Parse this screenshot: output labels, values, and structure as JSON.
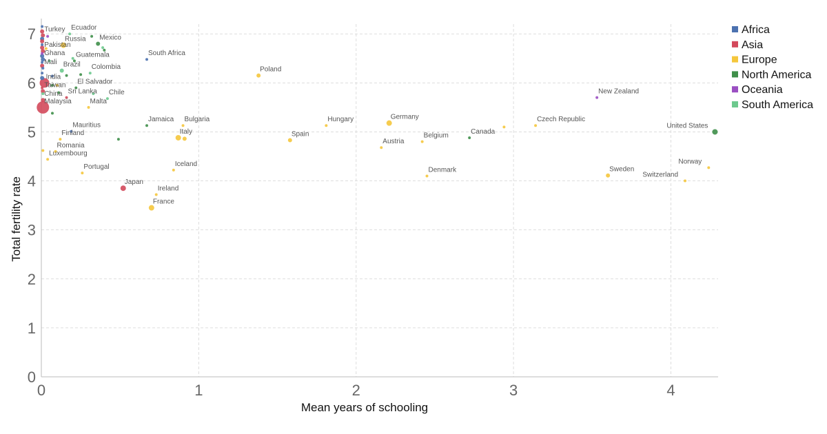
{
  "chart_data": {
    "type": "scatter",
    "xlabel": "Mean years of schooling",
    "ylabel": "Total fertility rate",
    "xlim": [
      0,
      4.3
    ],
    "ylim": [
      0,
      7.2
    ],
    "x_ticks": [
      "0",
      "1",
      "2",
      "3",
      "4"
    ],
    "y_ticks": [
      "0",
      "1",
      "2",
      "3",
      "4",
      "5",
      "6",
      "7"
    ],
    "grid": true,
    "legend_position": "top-right",
    "series": [
      {
        "name": "Africa",
        "color": "#4c72b0"
      },
      {
        "name": "Asia",
        "color": "#d3495b"
      },
      {
        "name": "Europe",
        "color": "#f5c73c"
      },
      {
        "name": "North America",
        "color": "#3f8f4a"
      },
      {
        "name": "Oceania",
        "color": "#9b4fc2"
      },
      {
        "name": "South America",
        "color": "#6dc98e"
      }
    ],
    "points": [
      {
        "label": "Turkey",
        "x": 0.01,
        "y": 6.97,
        "r": 3,
        "group": "Asia"
      },
      {
        "label": "Ecuador",
        "x": 0.18,
        "y": 7.0,
        "r": 2,
        "group": "South America"
      },
      {
        "label": "Mexico",
        "x": 0.36,
        "y": 6.8,
        "r": 3,
        "group": "North America"
      },
      {
        "label": "Russia",
        "x": 0.14,
        "y": 6.77,
        "r": 4,
        "group": "Europe"
      },
      {
        "label": "Pakistan",
        "x": 0.01,
        "y": 6.65,
        "r": 3,
        "group": "Asia"
      },
      {
        "label": "Guatemala",
        "x": 0.21,
        "y": 6.45,
        "r": 2,
        "group": "North America"
      },
      {
        "label": "Ghana",
        "x": 0.01,
        "y": 6.48,
        "r": 3,
        "group": "Africa"
      },
      {
        "label": "South Africa",
        "x": 0.67,
        "y": 6.48,
        "r": 2,
        "group": "Africa"
      },
      {
        "label": "Brazil",
        "x": 0.13,
        "y": 6.25,
        "r": 3,
        "group": "South America"
      },
      {
        "label": "Mali",
        "x": 0.01,
        "y": 6.3,
        "r": 2,
        "group": "Africa"
      },
      {
        "label": "Colombia",
        "x": 0.31,
        "y": 6.2,
        "r": 2,
        "group": "South America"
      },
      {
        "label": "Poland",
        "x": 1.38,
        "y": 6.15,
        "r": 3,
        "group": "Europe"
      },
      {
        "label": "India",
        "x": 0.02,
        "y": 6.0,
        "r": 7,
        "group": "Asia"
      },
      {
        "label": "El Salvador",
        "x": 0.22,
        "y": 5.9,
        "r": 2,
        "group": "North America"
      },
      {
        "label": "Taiwan",
        "x": 0.01,
        "y": 5.83,
        "r": 3,
        "group": "Asia"
      },
      {
        "label": "Sri Lanka",
        "x": 0.16,
        "y": 5.7,
        "r": 2,
        "group": "Asia"
      },
      {
        "label": "Chile",
        "x": 0.42,
        "y": 5.68,
        "r": 2,
        "group": "South America"
      },
      {
        "label": "China",
        "x": 0.01,
        "y": 5.65,
        "r": 3,
        "group": "Asia"
      },
      {
        "label": "Malta",
        "x": 0.3,
        "y": 5.5,
        "r": 2,
        "group": "Europe"
      },
      {
        "label": "Malaysia",
        "x": 0.01,
        "y": 5.5,
        "r": 9,
        "group": "Asia"
      },
      {
        "label": "New Zealand",
        "x": 3.53,
        "y": 5.7,
        "r": 2,
        "group": "Oceania"
      },
      {
        "label": "Germany",
        "x": 2.21,
        "y": 5.18,
        "r": 4,
        "group": "Europe"
      },
      {
        "label": "Hungary",
        "x": 1.81,
        "y": 5.13,
        "r": 2,
        "group": "Europe"
      },
      {
        "label": "Jamaica",
        "x": 0.67,
        "y": 5.13,
        "r": 2,
        "group": "North America"
      },
      {
        "label": "Bulgaria",
        "x": 0.9,
        "y": 5.13,
        "r": 2,
        "group": "Europe"
      },
      {
        "label": "Czech Republic",
        "x": 3.14,
        "y": 5.13,
        "r": 2,
        "group": "Europe"
      },
      {
        "label": "United States",
        "x": 4.28,
        "y": 5.0,
        "r": 4,
        "group": "North America"
      },
      {
        "label": "Mauritius",
        "x": 0.19,
        "y": 5.01,
        "r": 2,
        "group": "Africa"
      },
      {
        "label": "Canada",
        "x": 2.72,
        "y": 4.88,
        "r": 2,
        "group": "North America"
      },
      {
        "label": "Italy",
        "x": 0.87,
        "y": 4.88,
        "r": 4,
        "group": "Europe"
      },
      {
        "label": "Spain",
        "x": 1.58,
        "y": 4.83,
        "r": 3,
        "group": "Europe"
      },
      {
        "label": "Finland",
        "x": 0.12,
        "y": 4.85,
        "r": 2,
        "group": "Europe"
      },
      {
        "label": "Belgium",
        "x": 2.42,
        "y": 4.8,
        "r": 2,
        "group": "Europe"
      },
      {
        "label": "Austria",
        "x": 2.16,
        "y": 4.68,
        "r": 2,
        "group": "Europe"
      },
      {
        "label": "Romania",
        "x": 0.09,
        "y": 4.6,
        "r": 2,
        "group": "Europe"
      },
      {
        "label": "Luxembourg",
        "x": 0.04,
        "y": 4.44,
        "r": 2,
        "group": "Europe"
      },
      {
        "label": "Norway",
        "x": 4.24,
        "y": 4.27,
        "r": 2,
        "group": "Europe"
      },
      {
        "label": "Iceland",
        "x": 0.84,
        "y": 4.22,
        "r": 2,
        "group": "Europe"
      },
      {
        "label": "Portugal",
        "x": 0.26,
        "y": 4.16,
        "r": 2,
        "group": "Europe"
      },
      {
        "label": "Sweden",
        "x": 3.6,
        "y": 4.11,
        "r": 3,
        "group": "Europe"
      },
      {
        "label": "Denmark",
        "x": 2.45,
        "y": 4.1,
        "r": 2,
        "group": "Europe"
      },
      {
        "label": "Switzerland",
        "x": 4.09,
        "y": 4.0,
        "r": 2,
        "group": "Europe"
      },
      {
        "label": "Japan",
        "x": 0.52,
        "y": 3.85,
        "r": 4,
        "group": "Asia"
      },
      {
        "label": "Ireland",
        "x": 0.73,
        "y": 3.72,
        "r": 2,
        "group": "Europe"
      },
      {
        "label": "France",
        "x": 0.7,
        "y": 3.45,
        "r": 4,
        "group": "Europe"
      },
      {
        "label": "",
        "x": 0.005,
        "y": 7.15,
        "r": 2,
        "group": "Africa"
      },
      {
        "label": "",
        "x": 0.005,
        "y": 7.05,
        "r": 3,
        "group": "Asia"
      },
      {
        "label": "",
        "x": 0.005,
        "y": 6.9,
        "r": 3,
        "group": "Africa"
      },
      {
        "label": "",
        "x": 0.005,
        "y": 6.85,
        "r": 3,
        "group": "Asia"
      },
      {
        "label": "",
        "x": 0.005,
        "y": 6.78,
        "r": 2,
        "group": "Africa"
      },
      {
        "label": "",
        "x": 0.005,
        "y": 6.72,
        "r": 3,
        "group": "Asia"
      },
      {
        "label": "",
        "x": 0.005,
        "y": 6.6,
        "r": 2,
        "group": "Oceania"
      },
      {
        "label": "",
        "x": 0.005,
        "y": 6.55,
        "r": 3,
        "group": "Africa"
      },
      {
        "label": "",
        "x": 0.005,
        "y": 6.42,
        "r": 2,
        "group": "Africa"
      },
      {
        "label": "",
        "x": 0.005,
        "y": 6.35,
        "r": 3,
        "group": "Asia"
      },
      {
        "label": "",
        "x": 0.005,
        "y": 6.2,
        "r": 2,
        "group": "Africa"
      },
      {
        "label": "",
        "x": 0.005,
        "y": 6.1,
        "r": 3,
        "group": "Africa"
      },
      {
        "label": "",
        "x": 0.005,
        "y": 5.9,
        "r": 2,
        "group": "Asia"
      },
      {
        "label": "",
        "x": 0.01,
        "y": 5.78,
        "r": 2,
        "group": "South America"
      },
      {
        "label": "",
        "x": 0.04,
        "y": 6.95,
        "r": 2,
        "group": "Oceania"
      },
      {
        "label": "",
        "x": 0.03,
        "y": 6.7,
        "r": 2,
        "group": "Europe"
      },
      {
        "label": "",
        "x": 0.05,
        "y": 6.45,
        "r": 2,
        "group": "South America"
      },
      {
        "label": "",
        "x": 0.07,
        "y": 6.14,
        "r": 2,
        "group": "Africa"
      },
      {
        "label": "",
        "x": 0.07,
        "y": 5.95,
        "r": 2,
        "group": "North America"
      },
      {
        "label": "",
        "x": 0.11,
        "y": 5.8,
        "r": 2,
        "group": "North America"
      },
      {
        "label": "",
        "x": 0.16,
        "y": 6.15,
        "r": 2,
        "group": "North America"
      },
      {
        "label": "",
        "x": 0.2,
        "y": 6.5,
        "r": 2,
        "group": "South America"
      },
      {
        "label": "",
        "x": 0.25,
        "y": 6.17,
        "r": 2,
        "group": "North America"
      },
      {
        "label": "",
        "x": 0.32,
        "y": 6.95,
        "r": 2,
        "group": "North America"
      },
      {
        "label": "",
        "x": 0.39,
        "y": 6.72,
        "r": 2,
        "group": "South America"
      },
      {
        "label": "",
        "x": 0.4,
        "y": 6.67,
        "r": 2,
        "group": "North America"
      },
      {
        "label": "",
        "x": 0.33,
        "y": 5.78,
        "r": 2,
        "group": "South America"
      },
      {
        "label": "",
        "x": 0.07,
        "y": 5.38,
        "r": 2,
        "group": "North America"
      },
      {
        "label": "",
        "x": 0.49,
        "y": 4.85,
        "r": 2,
        "group": "North America"
      },
      {
        "label": "",
        "x": 0.01,
        "y": 4.62,
        "r": 2,
        "group": "Europe"
      },
      {
        "label": "",
        "x": 0.91,
        "y": 4.86,
        "r": 3,
        "group": "Europe"
      },
      {
        "label": "",
        "x": 2.94,
        "y": 5.1,
        "r": 2,
        "group": "Europe"
      },
      {
        "label": "",
        "x": 0.1,
        "y": 5.95,
        "r": 2,
        "group": "Europe"
      }
    ]
  }
}
